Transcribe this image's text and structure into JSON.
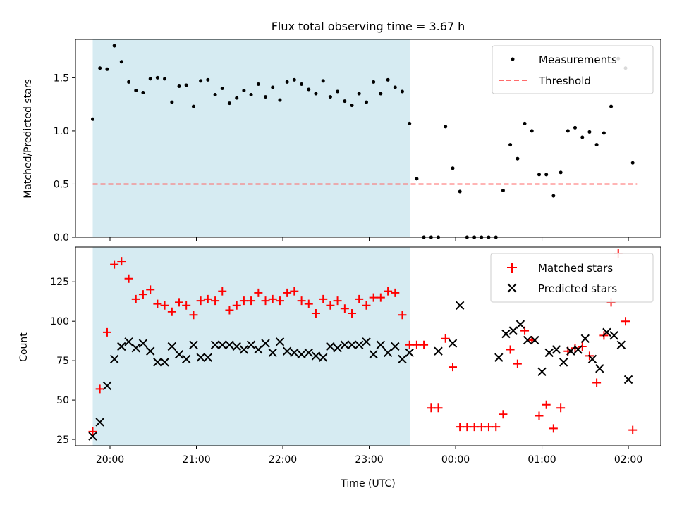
{
  "chart_data": [
    {
      "type": "scatter",
      "title": "Flux total observing time = 3.67 h",
      "ylabel": "Matched/Predicted stars",
      "xlabel": "",
      "xlim": [
        19.6,
        26.375
      ],
      "ylim": [
        0,
        1.86
      ],
      "x_tick_values": [
        20,
        21,
        22,
        23,
        24,
        25,
        26
      ],
      "yticks": [
        "0.0",
        "0.5",
        "1.0",
        "1.5"
      ],
      "ytick_values": [
        0,
        0.5,
        1.0,
        1.5
      ],
      "shaded_span": [
        19.8,
        23.47
      ],
      "shade_color": "#add8e6",
      "legend_position": "upper right",
      "series": [
        {
          "name": "Measurements",
          "marker": "dot",
          "color": "#000000",
          "x": [
            19.8,
            19.883,
            19.967,
            20.05,
            20.133,
            20.217,
            20.3,
            20.383,
            20.467,
            20.55,
            20.633,
            20.717,
            20.8,
            20.883,
            20.967,
            21.05,
            21.133,
            21.217,
            21.3,
            21.383,
            21.467,
            21.55,
            21.633,
            21.717,
            21.8,
            21.883,
            21.967,
            22.05,
            22.133,
            22.217,
            22.3,
            22.383,
            22.467,
            22.55,
            22.633,
            22.717,
            22.8,
            22.883,
            22.967,
            23.05,
            23.133,
            23.217,
            23.3,
            23.383,
            23.467,
            23.55,
            23.633,
            23.717,
            23.8,
            23.883,
            23.967,
            24.05,
            24.133,
            24.217,
            24.3,
            24.383,
            24.467,
            24.55,
            24.633,
            24.717,
            24.8,
            24.883,
            24.967,
            25.05,
            25.133,
            25.217,
            25.3,
            25.383,
            25.467,
            25.55,
            25.633,
            25.717,
            25.8,
            25.883,
            25.967,
            26.05
          ],
          "y": [
            1.11,
            1.59,
            1.58,
            1.8,
            1.65,
            1.46,
            1.38,
            1.36,
            1.49,
            1.5,
            1.49,
            1.27,
            1.42,
            1.43,
            1.23,
            1.47,
            1.48,
            1.34,
            1.4,
            1.26,
            1.31,
            1.38,
            1.34,
            1.44,
            1.32,
            1.41,
            1.29,
            1.46,
            1.48,
            1.44,
            1.39,
            1.35,
            1.47,
            1.32,
            1.37,
            1.28,
            1.24,
            1.35,
            1.27,
            1.46,
            1.35,
            1.48,
            1.41,
            1.37,
            1.07,
            0.55,
            0.0,
            0.0,
            0.0,
            1.04,
            0.65,
            0.43,
            0.0,
            0.0,
            0.0,
            0.0,
            0.0,
            0.44,
            0.87,
            0.74,
            1.07,
            1.0,
            0.59,
            0.59,
            0.39,
            0.61,
            1.0,
            1.03,
            0.94,
            0.99,
            0.87,
            0.98,
            1.23,
            1.68,
            1.59,
            0.7
          ]
        },
        {
          "name": "Threshold",
          "style": "dashed",
          "color": "#ff6b6b",
          "x": [
            19.8,
            26.1
          ],
          "y": [
            0.5,
            0.5
          ]
        }
      ]
    },
    {
      "type": "scatter",
      "title": "",
      "ylabel": "Count",
      "xlabel": "Time (UTC)",
      "xlim": [
        19.6,
        26.375
      ],
      "ylim": [
        21,
        147
      ],
      "xticks": [
        "20:00",
        "21:00",
        "22:00",
        "23:00",
        "00:00",
        "01:00",
        "02:00"
      ],
      "x_tick_values": [
        20,
        21,
        22,
        23,
        24,
        25,
        26
      ],
      "yticks": [
        "25",
        "50",
        "75",
        "100",
        "125"
      ],
      "ytick_values": [
        25,
        50,
        75,
        100,
        125
      ],
      "shaded_span": [
        19.8,
        23.47
      ],
      "shade_color": "#add8e6",
      "legend_position": "upper right",
      "series": [
        {
          "name": "Matched stars",
          "marker": "plus",
          "color": "#ff0000",
          "x": [
            19.8,
            19.883,
            19.967,
            20.05,
            20.133,
            20.217,
            20.3,
            20.383,
            20.467,
            20.55,
            20.633,
            20.717,
            20.8,
            20.883,
            20.967,
            21.05,
            21.133,
            21.217,
            21.3,
            21.383,
            21.467,
            21.55,
            21.633,
            21.717,
            21.8,
            21.883,
            21.967,
            22.05,
            22.133,
            22.217,
            22.3,
            22.383,
            22.467,
            22.55,
            22.633,
            22.717,
            22.8,
            22.883,
            22.967,
            23.05,
            23.133,
            23.217,
            23.3,
            23.383,
            23.467,
            23.55,
            23.633,
            23.717,
            23.8,
            23.883,
            23.967,
            24.05,
            24.133,
            24.217,
            24.3,
            24.383,
            24.467,
            24.55,
            24.633,
            24.717,
            24.8,
            24.883,
            24.967,
            25.05,
            25.133,
            25.217,
            25.3,
            25.383,
            25.467,
            25.55,
            25.633,
            25.717,
            25.8,
            25.883,
            25.967,
            26.05
          ],
          "y": [
            30,
            57,
            93,
            136,
            138,
            127,
            114,
            117,
            120,
            111,
            110,
            106,
            112,
            110,
            104,
            113,
            114,
            113,
            119,
            107,
            110,
            113,
            113,
            118,
            113,
            114,
            113,
            118,
            119,
            113,
            111,
            105,
            114,
            110,
            113,
            108,
            105,
            114,
            110,
            115,
            115,
            119,
            118,
            104,
            85,
            85,
            85,
            45,
            45,
            89,
            71,
            33,
            33,
            33,
            33,
            33,
            33,
            41,
            82,
            73,
            94,
            88,
            40,
            47,
            32,
            45,
            81,
            83,
            84,
            78,
            61,
            91,
            112,
            143,
            100,
            31
          ]
        },
        {
          "name": "Predicted stars",
          "marker": "x",
          "color": "#000000",
          "x": [
            19.8,
            19.883,
            19.967,
            20.05,
            20.133,
            20.217,
            20.3,
            20.383,
            20.467,
            20.55,
            20.633,
            20.717,
            20.8,
            20.883,
            20.967,
            21.05,
            21.133,
            21.217,
            21.3,
            21.383,
            21.467,
            21.55,
            21.633,
            21.717,
            21.8,
            21.883,
            21.967,
            22.05,
            22.133,
            22.217,
            22.3,
            22.383,
            22.467,
            22.55,
            22.633,
            22.717,
            22.8,
            22.883,
            22.967,
            23.05,
            23.133,
            23.217,
            23.3,
            23.383,
            23.467,
            23.8,
            23.967,
            24.05,
            24.5,
            24.583,
            24.667,
            24.75,
            24.833,
            24.917,
            25.0,
            25.083,
            25.167,
            25.25,
            25.333,
            25.417,
            25.5,
            25.583,
            25.667,
            25.75,
            25.833,
            25.917,
            26.0
          ],
          "y": [
            27,
            36,
            59,
            76,
            84,
            87,
            83,
            86,
            81,
            74,
            74,
            84,
            79,
            76,
            85,
            77,
            77,
            85,
            85,
            85,
            84,
            82,
            85,
            82,
            86,
            80,
            87,
            81,
            80,
            79,
            80,
            78,
            77,
            84,
            83,
            85,
            85,
            85,
            87,
            79,
            85,
            80,
            84,
            76,
            80,
            81,
            86,
            110,
            77,
            92,
            94,
            98,
            88,
            88,
            68,
            80,
            82,
            74,
            81,
            82,
            89,
            76,
            70,
            93,
            91,
            85,
            63
          ]
        }
      ]
    }
  ]
}
